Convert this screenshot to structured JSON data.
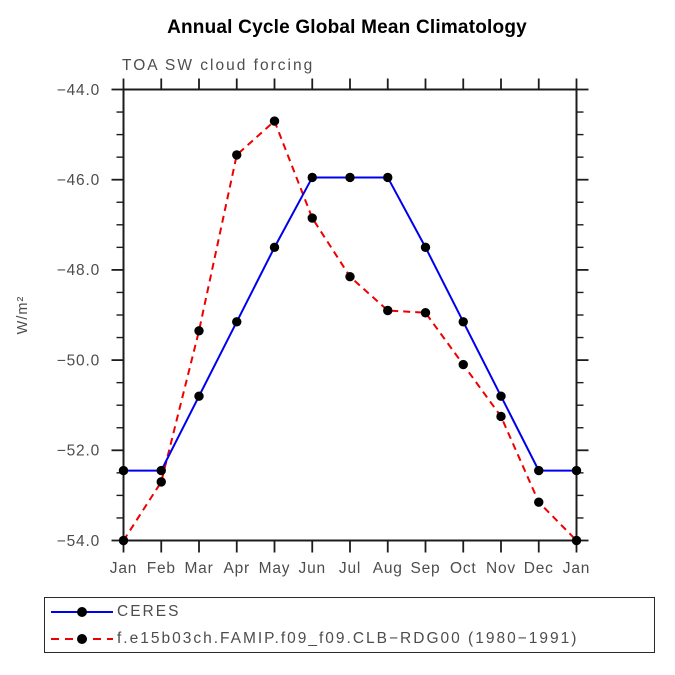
{
  "chart_data": {
    "type": "line",
    "title": "Annual Cycle Global Mean Climatology",
    "subtitle": "TOA SW cloud forcing",
    "ylabel": "W/m²",
    "xlabel": "",
    "categories": [
      "Jan",
      "Feb",
      "Mar",
      "Apr",
      "May",
      "Jun",
      "Jul",
      "Aug",
      "Sep",
      "Oct",
      "Nov",
      "Dec",
      "Jan"
    ],
    "ylim": [
      -54.0,
      -44.0
    ],
    "y_major_ticks": [
      -44.0,
      -46.0,
      -48.0,
      -50.0,
      -52.0,
      -54.0
    ],
    "y_tick_labels": [
      "−44.0",
      "−46.0",
      "−48.0",
      "−50.0",
      "−52.0",
      "−54.0"
    ],
    "y_minor_step": 0.5,
    "grid": false,
    "legend_position": "bottom-left-box",
    "series": [
      {
        "name": "CERES",
        "color": "#0000ee",
        "style": "solid",
        "marker": "filled-circle",
        "values": [
          -52.45,
          -52.45,
          -50.8,
          -49.15,
          -47.5,
          -45.95,
          -45.95,
          -45.95,
          -47.5,
          -49.15,
          -50.8,
          -52.45,
          -52.45
        ]
      },
      {
        "name": "f.e15b03ch.FAMIP.f09_f09.CLB−RDG00 (1980−1991)",
        "color": "#ee0000",
        "style": "dashed",
        "marker": "filled-circle",
        "values": [
          -54.0,
          -52.7,
          -49.35,
          -45.45,
          -44.7,
          -46.85,
          -48.15,
          -48.9,
          -48.95,
          -50.1,
          -51.25,
          -53.15,
          -54.0
        ]
      }
    ]
  },
  "colors": {
    "axis": "#1c1c1c",
    "marker": "#000000",
    "label_text": "#4d4d4d"
  }
}
